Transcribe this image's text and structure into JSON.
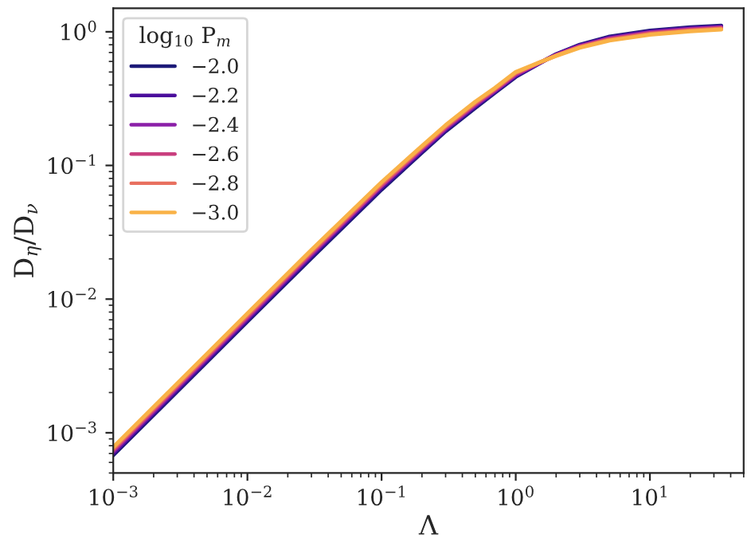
{
  "chart_data": {
    "type": "line",
    "xlabel": "Λ",
    "ylabel": "D$_{η}$/D$_{ν}$",
    "legend_title": "log$_{10}$ P$_{m}$",
    "legend": "top left",
    "log": "xy",
    "grid": false,
    "marker": "none",
    "line_style": "solid",
    "x": [
      0.001,
      0.003,
      0.01,
      0.03,
      0.1,
      0.2,
      0.3,
      0.5,
      0.7,
      1,
      1.5,
      2,
      3,
      5,
      10,
      20,
      34
    ],
    "series": [
      {
        "name": "−2.0",
        "color": "#1c1a78",
        "values": [
          0.00068,
          0.00204,
          0.0068,
          0.0203,
          0.066,
          0.125,
          0.18,
          0.27,
          0.35,
          0.46,
          0.58,
          0.68,
          0.8,
          0.92,
          1.02,
          1.08,
          1.11
        ]
      },
      {
        "name": "−2.2",
        "color": "#4a0c9c",
        "values": [
          0.0007,
          0.0021,
          0.007,
          0.0209,
          0.068,
          0.128,
          0.184,
          0.276,
          0.356,
          0.468,
          0.582,
          0.676,
          0.792,
          0.908,
          1.006,
          1.066,
          1.096
        ]
      },
      {
        "name": "−2.4",
        "color": "#8b1fa8",
        "values": [
          0.00072,
          0.00216,
          0.0072,
          0.0215,
          0.07,
          0.131,
          0.188,
          0.282,
          0.362,
          0.476,
          0.584,
          0.672,
          0.784,
          0.896,
          0.992,
          1.052,
          1.082
        ]
      },
      {
        "name": "−2.6",
        "color": "#c93e7e",
        "values": [
          0.00074,
          0.00222,
          0.0074,
          0.0221,
          0.071,
          0.134,
          0.192,
          0.288,
          0.368,
          0.484,
          0.586,
          0.668,
          0.776,
          0.884,
          0.978,
          1.038,
          1.068
        ]
      },
      {
        "name": "−2.8",
        "color": "#e8705f",
        "values": [
          0.00076,
          0.00228,
          0.0076,
          0.0227,
          0.073,
          0.137,
          0.196,
          0.294,
          0.374,
          0.492,
          0.588,
          0.664,
          0.768,
          0.872,
          0.964,
          1.024,
          1.054
        ]
      },
      {
        "name": "−3.0",
        "color": "#f9b247",
        "values": [
          0.00078,
          0.00234,
          0.0078,
          0.0233,
          0.075,
          0.14,
          0.2,
          0.3,
          0.38,
          0.5,
          0.59,
          0.66,
          0.76,
          0.86,
          0.95,
          1.01,
          1.04
        ]
      }
    ],
    "xlim": [
      0.001,
      50
    ],
    "ylim": [
      0.0005,
      1.5
    ],
    "xticks": [
      {
        "value": 0.001,
        "label": "10$^{−3}$"
      },
      {
        "value": 0.01,
        "label": "10$^{−2}$"
      },
      {
        "value": 0.1,
        "label": "10$^{−1}$"
      },
      {
        "value": 1,
        "label": "10$^{0}$"
      },
      {
        "value": 10,
        "label": "10$^{1}$"
      }
    ],
    "yticks": [
      {
        "value": 0.001,
        "label": "10$^{−3}$"
      },
      {
        "value": 0.01,
        "label": "10$^{−2}$"
      },
      {
        "value": 0.1,
        "label": "10$^{−1}$"
      },
      {
        "value": 1,
        "label": "10$^{0}$"
      }
    ]
  }
}
